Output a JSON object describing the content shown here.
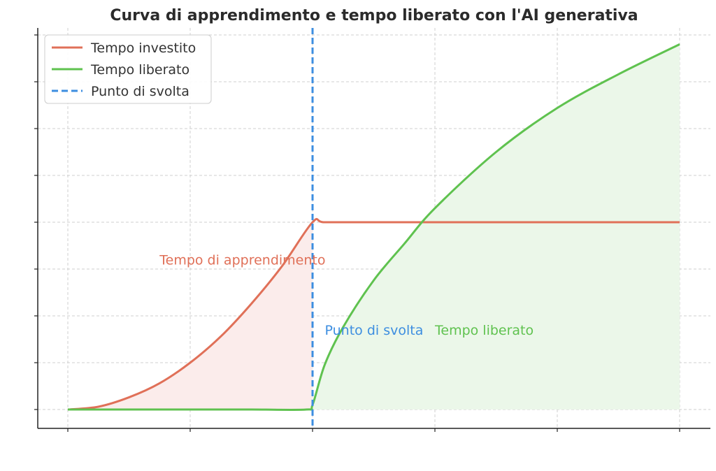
{
  "chart_data": {
    "type": "line",
    "title": "Curva di apprendimento e tempo liberato con l'AI generativa",
    "xlabel": "",
    "ylabel": "",
    "xlim": [
      0,
      10
    ],
    "ylim": [
      -0.2,
      4.1
    ],
    "xticks": [
      0,
      2,
      4,
      6,
      8,
      10
    ],
    "yticks": [
      0,
      0.5,
      1,
      1.5,
      2,
      2.5,
      3,
      3.5,
      4
    ],
    "grid": true,
    "legend_position": "top-left",
    "series": [
      {
        "name": "Tempo investito",
        "color": "#e07058",
        "fill": "#fbeceb",
        "x": [
          0,
          0.5,
          1,
          1.5,
          2,
          2.5,
          3,
          3.5,
          4,
          4.2,
          5,
          6,
          7,
          8,
          9,
          10
        ],
        "y": [
          0,
          0.03,
          0.13,
          0.28,
          0.5,
          0.78,
          1.13,
          1.53,
          2.0,
          2.0,
          2.0,
          2.0,
          2.0,
          2.0,
          2.0,
          2.0
        ]
      },
      {
        "name": "Tempo liberato",
        "color": "#5fc24f",
        "fill": "#ebf7e9",
        "x": [
          0,
          1,
          2,
          3,
          3.9,
          4.0,
          4.2,
          4.5,
          5,
          5.5,
          6,
          7,
          8,
          9,
          10
        ],
        "y": [
          0,
          0,
          0,
          0,
          0,
          0.05,
          0.48,
          0.88,
          1.38,
          1.77,
          2.15,
          2.75,
          3.22,
          3.58,
          3.9
        ]
      }
    ],
    "vline": {
      "name": "Punto di svolta",
      "x": 4,
      "color": "#3d8ee0"
    },
    "annotations": [
      {
        "text": "Tempo di apprendimento",
        "x": 1.5,
        "y": 1.55,
        "color": "#e07058"
      },
      {
        "text": "Punto di svolta",
        "x": 4.2,
        "y": 0.8,
        "color": "#3d8ee0"
      },
      {
        "text": "Tempo liberato",
        "x": 6.0,
        "y": 0.8,
        "color": "#5fc24f"
      }
    ]
  }
}
